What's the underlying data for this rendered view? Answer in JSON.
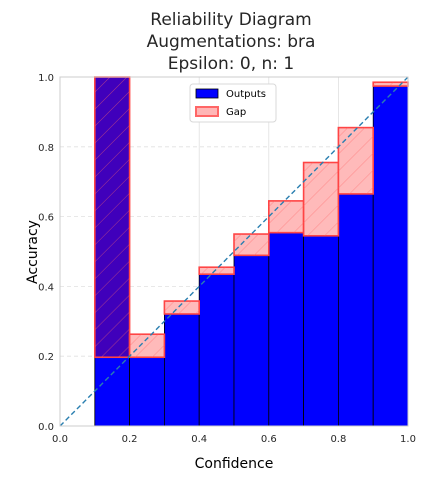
{
  "chart_data": {
    "type": "bar",
    "title_lines": [
      "Reliability Diagram",
      "Augmentations: bra",
      "Epsilon: 0, n: 1"
    ],
    "xlabel": "Confidence",
    "ylabel": "Accuracy",
    "xlim": [
      0,
      1
    ],
    "ylim": [
      0,
      1
    ],
    "xticks": [
      "0.0",
      "0.2",
      "0.4",
      "0.6",
      "0.8",
      "1.0"
    ],
    "yticks": [
      "0.0",
      "0.2",
      "0.4",
      "0.6",
      "0.8",
      "1.0"
    ],
    "bins": [
      {
        "bin": [
          0.0,
          0.1
        ],
        "accuracy": 0.0,
        "confidence": 0.0
      },
      {
        "bin": [
          0.1,
          0.2
        ],
        "accuracy": 1.0,
        "confidence": 0.197
      },
      {
        "bin": [
          0.2,
          0.3
        ],
        "accuracy": 0.197,
        "confidence": 0.263
      },
      {
        "bin": [
          0.3,
          0.4
        ],
        "accuracy": 0.321,
        "confidence": 0.358
      },
      {
        "bin": [
          0.4,
          0.5
        ],
        "accuracy": 0.435,
        "confidence": 0.455
      },
      {
        "bin": [
          0.5,
          0.6
        ],
        "accuracy": 0.489,
        "confidence": 0.55
      },
      {
        "bin": [
          0.6,
          0.7
        ],
        "accuracy": 0.554,
        "confidence": 0.645
      },
      {
        "bin": [
          0.7,
          0.8
        ],
        "accuracy": 0.545,
        "confidence": 0.755
      },
      {
        "bin": [
          0.8,
          0.9
        ],
        "accuracy": 0.665,
        "confidence": 0.855
      },
      {
        "bin": [
          0.9,
          1.0
        ],
        "accuracy": 0.974,
        "confidence": 0.985
      }
    ],
    "legend": {
      "placement": "top-center",
      "entries": [
        "Outputs",
        "Gap"
      ]
    },
    "grid": true,
    "diagonal": "perfect calibration (dashed)",
    "colors": {
      "outputs": "#0000ff",
      "outputs_edge": "#000000",
      "gap_fill": "#ffb6b6",
      "gap_edge": "#ff4444",
      "overlap": "#4000bb",
      "diagonal": "#2a7fb0",
      "grid": "#e0e0e0",
      "axes": "#cccccc"
    }
  }
}
